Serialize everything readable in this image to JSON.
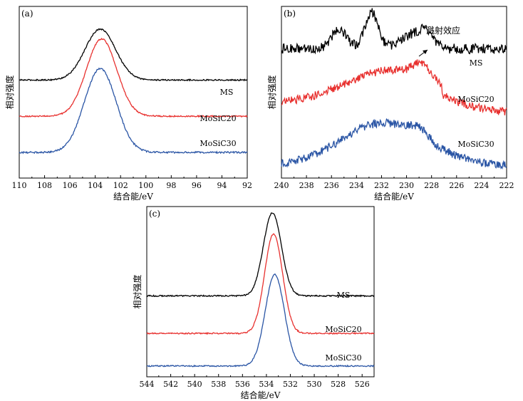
{
  "chart_data": [
    {
      "type": "line",
      "panel_label": "(a)",
      "xlabel": "结合能/eV",
      "ylabel": "相对强度",
      "xlim": [
        110,
        92
      ],
      "x_ticks": [
        110,
        108,
        106,
        104,
        102,
        100,
        98,
        96,
        94,
        92
      ],
      "series": [
        {
          "name": "MS",
          "color": "#000000",
          "baseline": 0.57,
          "peak_x": 103.6,
          "peak_height": 0.88,
          "width": 1.2,
          "asym": 1.0,
          "noise": 0.004,
          "noise_feature": 0
        },
        {
          "name": "MoSiC20",
          "color": "#e8312f",
          "baseline": 0.35,
          "peak_x": 103.5,
          "peak_height": 0.82,
          "width": 1.2,
          "asym": 1.0,
          "noise": 0.004,
          "noise_feature": 0
        },
        {
          "name": "MoSiC30",
          "color": "#2a55a5",
          "baseline": 0.13,
          "peak_x": 103.6,
          "peak_height": 0.64,
          "width": 1.25,
          "asym": 1.0,
          "noise": 0.005,
          "noise_feature": 0
        }
      ]
    },
    {
      "type": "line",
      "panel_label": "(b)",
      "annotation": "溅射效应",
      "xlabel": "结合能/eV",
      "ylabel": "相对强度",
      "xlim": [
        240,
        222
      ],
      "x_ticks": [
        240,
        238,
        236,
        234,
        232,
        230,
        228,
        226,
        224,
        222
      ],
      "series": [
        {
          "name": "MS",
          "color": "#000000",
          "baseline": 0.76,
          "peak_x": 232.8,
          "peak_height": 0.98,
          "width": 0.55,
          "asym": 1.0,
          "noise": 0.03,
          "noise_feature": 1
        },
        {
          "name": "MoSiC20",
          "color": "#e8312f",
          "baseline": 0.43,
          "peak_x": 231.2,
          "peak_height": 0.63,
          "width": 3.6,
          "asym": 1.0,
          "noise": 0.025,
          "noise_feature": 2
        },
        {
          "name": "MoSiC30",
          "color": "#2a55a5",
          "baseline": 0.05,
          "peak_x": 231.8,
          "peak_height": 0.31,
          "width": 3.4,
          "asym": 1.0,
          "noise": 0.025,
          "noise_feature": 3
        }
      ]
    },
    {
      "type": "line",
      "panel_label": "(c)",
      "xlabel": "结合能/eV",
      "ylabel": "相对强度",
      "xlim": [
        544,
        525
      ],
      "x_ticks": [
        544,
        542,
        540,
        538,
        536,
        534,
        532,
        530,
        528,
        526
      ],
      "series": [
        {
          "name": "MS",
          "color": "#000000",
          "baseline": 0.47,
          "peak_x": 533.5,
          "peak_height": 0.98,
          "width": 0.75,
          "asym": 1.0,
          "noise": 0.004,
          "noise_feature": 0
        },
        {
          "name": "MoSiC20",
          "color": "#e8312f",
          "baseline": 0.24,
          "peak_x": 533.4,
          "peak_height": 0.85,
          "width": 0.75,
          "asym": 1.0,
          "noise": 0.004,
          "noise_feature": 0
        },
        {
          "name": "MoSiC30",
          "color": "#2a55a5",
          "baseline": 0.04,
          "peak_x": 533.3,
          "peak_height": 0.6,
          "width": 0.8,
          "asym": 1.0,
          "noise": 0.004,
          "noise_feature": 0
        }
      ]
    }
  ]
}
